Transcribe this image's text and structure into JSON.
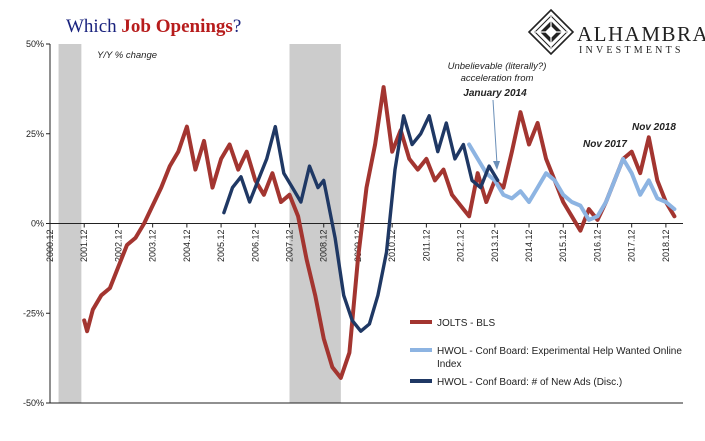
{
  "title": {
    "part1": "Which ",
    "part2": "Job Openings",
    "part3": "?"
  },
  "brand": {
    "name": "ALHAMBRA",
    "sub": "INVESTMENTS"
  },
  "colors": {
    "title_dark": "#1a237e",
    "title_red": "#b71c1c",
    "jolts": "#a33530",
    "hwol_exp": "#8db4e2",
    "hwol_ads": "#1f3864",
    "recession": "#cccccc"
  },
  "chart_data": {
    "type": "line",
    "ylabel": "Y/Y % change",
    "ylim": [
      -50,
      50
    ],
    "yticks": [
      "50%",
      "25%",
      "0%",
      "-25%",
      "-50%"
    ],
    "x_tick_labels": [
      "2000.12",
      "2001.12",
      "2002.12",
      "2003.12",
      "2004.12",
      "2005.12",
      "2006.12",
      "2007.12",
      "2008.12",
      "2009.12",
      "2010.12",
      "2011.12",
      "2012.12",
      "2013.12",
      "2014.12",
      "2015.12",
      "2016.12",
      "2017.12",
      "2018.12"
    ],
    "xlim": [
      "2000-12",
      "2019-06"
    ],
    "recessions": [
      [
        "2001-03",
        "2001-11"
      ],
      [
        "2007-12",
        "2009-06"
      ]
    ],
    "legend_position": "lower-right",
    "series": [
      {
        "name": "JOLTS - BLS",
        "color": "#a33530",
        "points": [
          [
            "2001-12",
            -27
          ],
          [
            "2002-01",
            -30
          ],
          [
            "2002-03",
            -24
          ],
          [
            "2002-06",
            -20
          ],
          [
            "2002-09",
            -18
          ],
          [
            "2002-12",
            -12
          ],
          [
            "2003-03",
            -6
          ],
          [
            "2003-06",
            -4
          ],
          [
            "2003-09",
            0
          ],
          [
            "2003-12",
            5
          ],
          [
            "2004-03",
            10
          ],
          [
            "2004-06",
            16
          ],
          [
            "2004-09",
            20
          ],
          [
            "2004-12",
            27
          ],
          [
            "2005-03",
            15
          ],
          [
            "2005-06",
            23
          ],
          [
            "2005-09",
            10
          ],
          [
            "2005-12",
            18
          ],
          [
            "2006-03",
            22
          ],
          [
            "2006-06",
            15
          ],
          [
            "2006-09",
            20
          ],
          [
            "2006-12",
            12
          ],
          [
            "2007-03",
            8
          ],
          [
            "2007-06",
            14
          ],
          [
            "2007-09",
            6
          ],
          [
            "2007-12",
            8
          ],
          [
            "2008-03",
            2
          ],
          [
            "2008-06",
            -10
          ],
          [
            "2008-09",
            -20
          ],
          [
            "2008-12",
            -32
          ],
          [
            "2009-03",
            -40
          ],
          [
            "2009-06",
            -43
          ],
          [
            "2009-09",
            -36
          ],
          [
            "2009-12",
            -10
          ],
          [
            "2010-03",
            10
          ],
          [
            "2010-06",
            22
          ],
          [
            "2010-09",
            38
          ],
          [
            "2010-12",
            20
          ],
          [
            "2011-03",
            26
          ],
          [
            "2011-06",
            18
          ],
          [
            "2011-09",
            15
          ],
          [
            "2011-12",
            18
          ],
          [
            "2012-03",
            12
          ],
          [
            "2012-06",
            15
          ],
          [
            "2012-09",
            8
          ],
          [
            "2012-12",
            5
          ],
          [
            "2013-03",
            2
          ],
          [
            "2013-06",
            14
          ],
          [
            "2013-09",
            6
          ],
          [
            "2013-12",
            12
          ],
          [
            "2014-03",
            10
          ],
          [
            "2014-06",
            20
          ],
          [
            "2014-09",
            31
          ],
          [
            "2014-12",
            22
          ],
          [
            "2015-03",
            28
          ],
          [
            "2015-06",
            18
          ],
          [
            "2015-09",
            12
          ],
          [
            "2015-12",
            6
          ],
          [
            "2016-03",
            2
          ],
          [
            "2016-06",
            -2
          ],
          [
            "2016-09",
            4
          ],
          [
            "2016-12",
            1
          ],
          [
            "2017-03",
            6
          ],
          [
            "2017-06",
            12
          ],
          [
            "2017-09",
            18
          ],
          [
            "2017-12",
            20
          ],
          [
            "2018-03",
            14
          ],
          [
            "2018-06",
            24
          ],
          [
            "2018-09",
            12
          ],
          [
            "2018-12",
            6
          ],
          [
            "2019-03",
            2
          ]
        ]
      },
      {
        "name": "HWOL - Conf Board: Experimental Help Wanted Online Index",
        "color": "#8db4e2",
        "points": [
          [
            "2013-03",
            22
          ],
          [
            "2013-06",
            18
          ],
          [
            "2013-09",
            14
          ],
          [
            "2013-12",
            12
          ],
          [
            "2014-03",
            8
          ],
          [
            "2014-06",
            7
          ],
          [
            "2014-09",
            9
          ],
          [
            "2014-12",
            6
          ],
          [
            "2015-03",
            10
          ],
          [
            "2015-06",
            14
          ],
          [
            "2015-09",
            12
          ],
          [
            "2015-12",
            8
          ],
          [
            "2016-03",
            6
          ],
          [
            "2016-06",
            5
          ],
          [
            "2016-09",
            1
          ],
          [
            "2016-12",
            2
          ],
          [
            "2017-03",
            6
          ],
          [
            "2017-06",
            12
          ],
          [
            "2017-09",
            18
          ],
          [
            "2017-12",
            14
          ],
          [
            "2018-03",
            8
          ],
          [
            "2018-06",
            12
          ],
          [
            "2018-09",
            7
          ],
          [
            "2018-12",
            6
          ],
          [
            "2019-03",
            4
          ]
        ]
      },
      {
        "name": "HWOL - Conf Board: # of New Ads (Disc.)",
        "color": "#1f3864",
        "points": [
          [
            "2006-01",
            3
          ],
          [
            "2006-04",
            10
          ],
          [
            "2006-07",
            13
          ],
          [
            "2006-10",
            6
          ],
          [
            "2007-01",
            12
          ],
          [
            "2007-04",
            18
          ],
          [
            "2007-07",
            27
          ],
          [
            "2007-10",
            14
          ],
          [
            "2008-01",
            10
          ],
          [
            "2008-04",
            6
          ],
          [
            "2008-07",
            16
          ],
          [
            "2008-10",
            10
          ],
          [
            "2008-12",
            12
          ],
          [
            "2009-01",
            8
          ],
          [
            "2009-04",
            -4
          ],
          [
            "2009-07",
            -20
          ],
          [
            "2009-10",
            -27
          ],
          [
            "2010-01",
            -30
          ],
          [
            "2010-04",
            -28
          ],
          [
            "2010-07",
            -20
          ],
          [
            "2010-10",
            -8
          ],
          [
            "2011-01",
            15
          ],
          [
            "2011-04",
            30
          ],
          [
            "2011-07",
            22
          ],
          [
            "2011-10",
            25
          ],
          [
            "2012-01",
            30
          ],
          [
            "2012-04",
            20
          ],
          [
            "2012-07",
            28
          ],
          [
            "2012-10",
            18
          ],
          [
            "2013-01",
            22
          ],
          [
            "2013-04",
            12
          ],
          [
            "2013-07",
            10
          ],
          [
            "2013-10",
            16
          ],
          [
            "2014-01",
            12
          ]
        ]
      }
    ],
    "annotations": [
      {
        "line1": "Unbelievable (literally?)",
        "line2": "acceleration from",
        "line3": "January 2014"
      },
      {
        "text": "Nov 2017"
      },
      {
        "text": "Nov 2018"
      }
    ]
  }
}
